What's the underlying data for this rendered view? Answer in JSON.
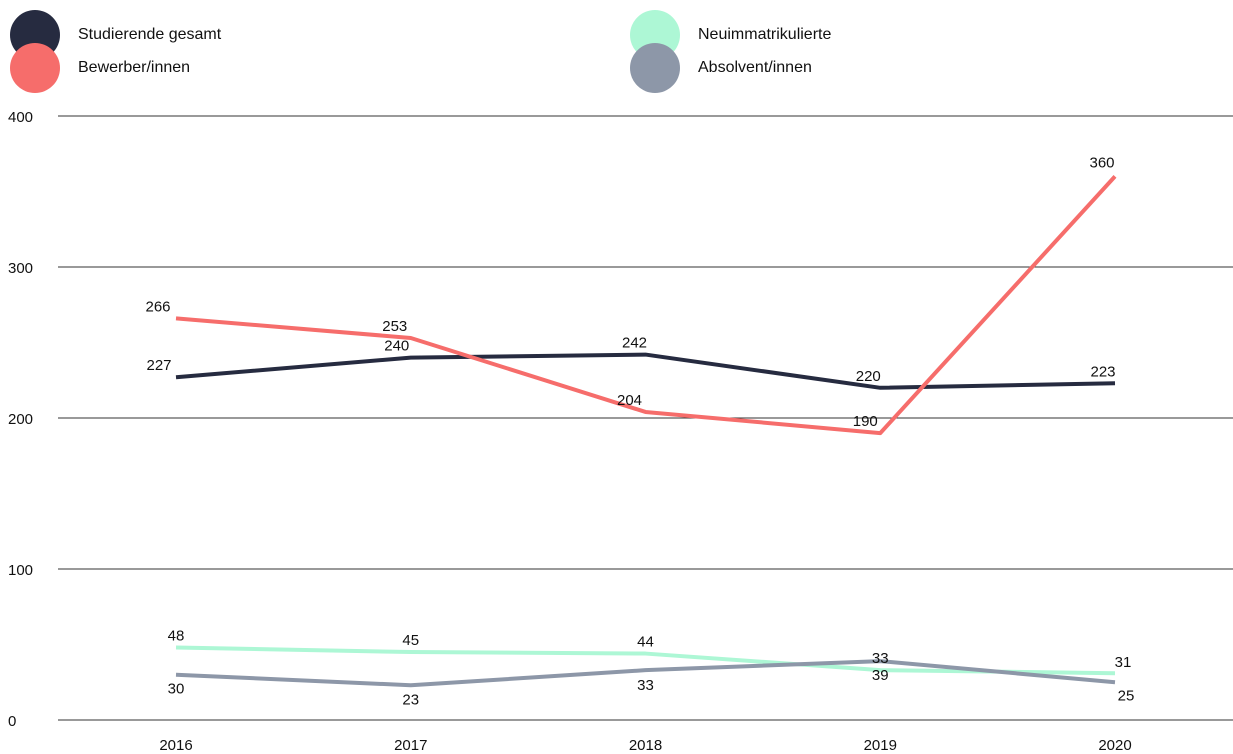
{
  "chart_data": {
    "type": "line",
    "title": "",
    "xlabel": "",
    "ylabel": "",
    "categories": [
      "2016",
      "2017",
      "2018",
      "2019",
      "2020"
    ],
    "ylim": [
      0,
      400
    ],
    "yticks": [
      0,
      100,
      200,
      300,
      400
    ],
    "grid": "horizontal",
    "legend_position": "top",
    "series": [
      {
        "name": "Studierende gesamt",
        "color": "#262b40",
        "values": [
          227,
          240,
          242,
          220,
          223
        ]
      },
      {
        "name": "Bewerber/innen",
        "color": "#f66d6b",
        "values": [
          266,
          253,
          204,
          190,
          360
        ]
      },
      {
        "name": "Neuimmatrikulierte",
        "color": "#adf7d5",
        "values": [
          48,
          45,
          44,
          33,
          31
        ]
      },
      {
        "name": "Absolvent/innen",
        "color": "#8d97a8",
        "values": [
          30,
          23,
          33,
          39,
          25
        ]
      }
    ]
  }
}
